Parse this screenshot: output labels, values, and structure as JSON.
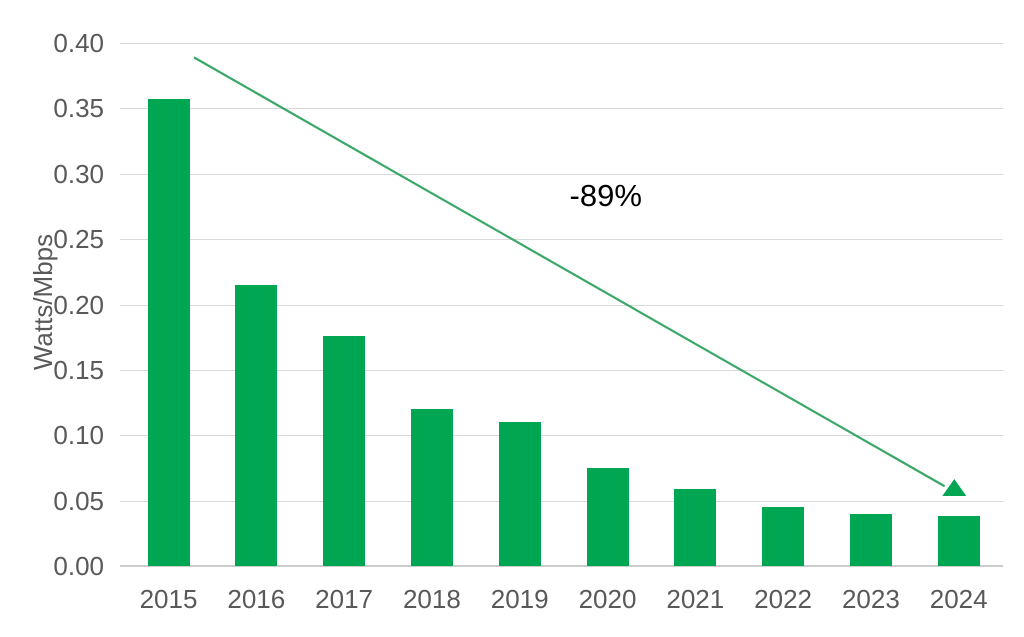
{
  "chart_data": {
    "type": "bar",
    "title": "",
    "ylabel": "Watts/Mbps",
    "xlabel": "",
    "categories": [
      "2015",
      "2016",
      "2017",
      "2018",
      "2019",
      "2020",
      "2021",
      "2022",
      "2023",
      "2024"
    ],
    "values": [
      0.357,
      0.215,
      0.176,
      0.12,
      0.11,
      0.075,
      0.059,
      0.045,
      0.04,
      0.038
    ],
    "ylim": [
      0,
      0.4
    ],
    "y_ticks": [
      0.0,
      0.05,
      0.1,
      0.15,
      0.2,
      0.25,
      0.3,
      0.35,
      0.4
    ],
    "y_tick_decimals": 2,
    "grid": "horizontal",
    "legend": "none",
    "bar_color": "#00a651",
    "text_color": "#595959",
    "gridline_color": "#d9d9d9",
    "annotation": {
      "text": "-89%",
      "color": "#000000",
      "position": {
        "x_index": 4.98,
        "y_value": 0.283
      }
    },
    "trend_arrow": {
      "color": "#3aa768",
      "head_color": "#00a651",
      "start": {
        "x_index": 0.29,
        "y_value": 0.389
      },
      "end": {
        "x_index": 8.84,
        "y_value": 0.061
      },
      "head": {
        "x_index": 8.95,
        "y_value": 0.06,
        "shape": "triangle-up"
      }
    }
  }
}
